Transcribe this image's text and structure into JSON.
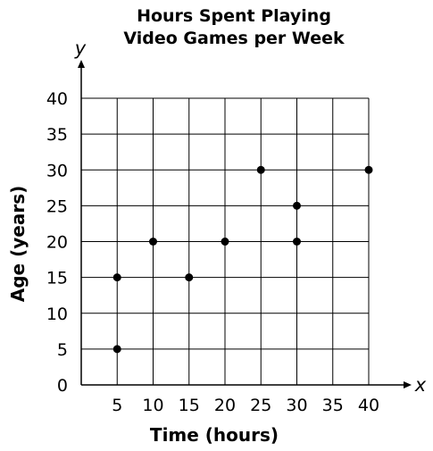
{
  "chart_data": {
    "type": "scatter",
    "title_lines": [
      "Hours Spent Playing",
      "Video Games per Week"
    ],
    "xlabel": "Time (hours)",
    "ylabel": "Age (years)",
    "x_axis_letter": "x",
    "y_axis_letter": "y",
    "xlim": [
      0,
      40
    ],
    "ylim": [
      0,
      40
    ],
    "x_ticks": [
      5,
      10,
      15,
      20,
      25,
      30,
      35,
      40
    ],
    "y_ticks": [
      0,
      5,
      10,
      15,
      20,
      25,
      30,
      35,
      40
    ],
    "grid": true,
    "points": [
      {
        "x": 5,
        "y": 5
      },
      {
        "x": 5,
        "y": 15
      },
      {
        "x": 10,
        "y": 20
      },
      {
        "x": 15,
        "y": 15
      },
      {
        "x": 20,
        "y": 20
      },
      {
        "x": 25,
        "y": 30
      },
      {
        "x": 30,
        "y": 20
      },
      {
        "x": 30,
        "y": 25
      },
      {
        "x": 40,
        "y": 30
      }
    ],
    "point_color": "#000000"
  }
}
